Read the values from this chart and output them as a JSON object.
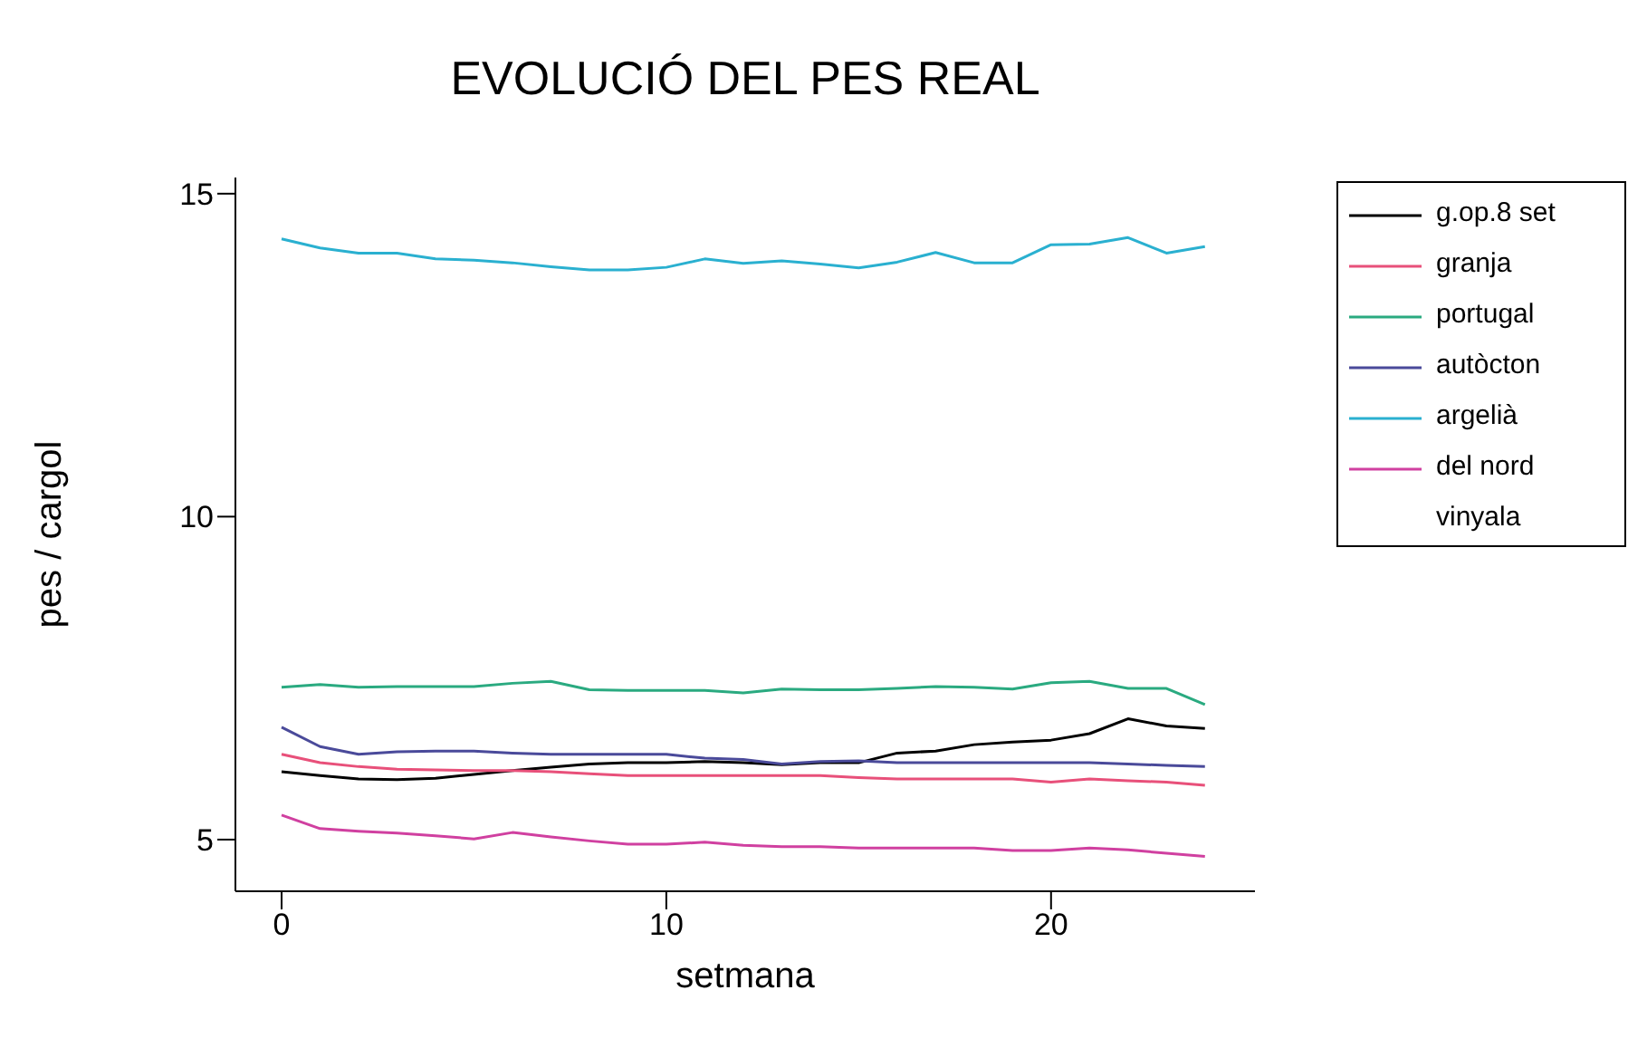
{
  "chart_data": {
    "type": "line",
    "title": "EVOLUCIÓ DEL PES REAL",
    "xlabel": "setmana",
    "ylabel": "pes / cargol",
    "x": [
      0,
      1,
      2,
      3,
      4,
      5,
      6,
      7,
      8,
      9,
      10,
      11,
      12,
      13,
      14,
      15,
      16,
      17,
      18,
      19,
      20,
      21,
      22,
      23,
      24
    ],
    "series": [
      {
        "name": "g.op.8 set",
        "color": "#000000",
        "values": [
          6.05,
          5.99,
          5.94,
          5.93,
          5.95,
          6.01,
          6.07,
          6.12,
          6.17,
          6.19,
          6.19,
          6.21,
          6.19,
          6.16,
          6.19,
          6.19,
          6.34,
          6.37,
          6.47,
          6.51,
          6.54,
          6.64,
          6.87,
          6.76,
          6.72
        ]
      },
      {
        "name": "granja",
        "color": "#e8507a",
        "values": [
          6.32,
          6.19,
          6.13,
          6.09,
          6.08,
          6.07,
          6.07,
          6.05,
          6.02,
          5.99,
          5.99,
          5.99,
          5.99,
          5.99,
          5.99,
          5.96,
          5.94,
          5.94,
          5.94,
          5.94,
          5.89,
          5.94,
          5.91,
          5.89,
          5.84
        ]
      },
      {
        "name": "portugal",
        "color": "#2aaa80",
        "values": [
          7.36,
          7.4,
          7.36,
          7.37,
          7.37,
          7.37,
          7.42,
          7.45,
          7.32,
          7.31,
          7.31,
          7.31,
          7.27,
          7.33,
          7.32,
          7.32,
          7.34,
          7.37,
          7.36,
          7.33,
          7.43,
          7.45,
          7.34,
          7.34,
          7.09
        ]
      },
      {
        "name": "autòcton",
        "color": "#4a4a9a",
        "values": [
          6.74,
          6.44,
          6.32,
          6.36,
          6.37,
          6.37,
          6.34,
          6.32,
          6.32,
          6.32,
          6.32,
          6.26,
          6.24,
          6.17,
          6.21,
          6.22,
          6.19,
          6.19,
          6.19,
          6.19,
          6.19,
          6.19,
          6.17,
          6.15,
          6.13
        ]
      },
      {
        "name": "argelià",
        "color": "#2ab0d0",
        "values": [
          14.3,
          14.16,
          14.08,
          14.08,
          13.99,
          13.97,
          13.93,
          13.87,
          13.82,
          13.82,
          13.86,
          13.99,
          13.92,
          13.96,
          13.91,
          13.85,
          13.94,
          14.09,
          13.93,
          13.93,
          14.21,
          14.22,
          14.32,
          14.08,
          14.18
        ]
      },
      {
        "name": "del nord",
        "color": "#d040a0",
        "values": [
          5.38,
          5.17,
          5.13,
          5.1,
          5.06,
          5.01,
          5.11,
          5.04,
          4.98,
          4.93,
          4.93,
          4.96,
          4.91,
          4.89,
          4.89,
          4.87,
          4.87,
          4.87,
          4.87,
          4.83,
          4.83,
          4.87,
          4.84,
          4.79,
          4.74
        ]
      },
      {
        "name": "vinyala",
        "values": [
          null,
          null,
          null,
          null,
          null,
          null,
          null,
          null,
          null,
          null,
          null,
          null,
          null,
          null,
          null,
          null,
          null,
          null,
          null,
          null,
          null,
          null,
          null,
          null,
          null
        ]
      }
    ],
    "xlim": [
      -1.2,
      25.3
    ],
    "xticks": [
      0,
      10,
      20
    ],
    "ylim": [
      4.2,
      15.25
    ],
    "yticks": [
      5,
      10,
      15
    ],
    "grid": false,
    "legend": "right",
    "marker": "none",
    "line_style": "solid"
  }
}
